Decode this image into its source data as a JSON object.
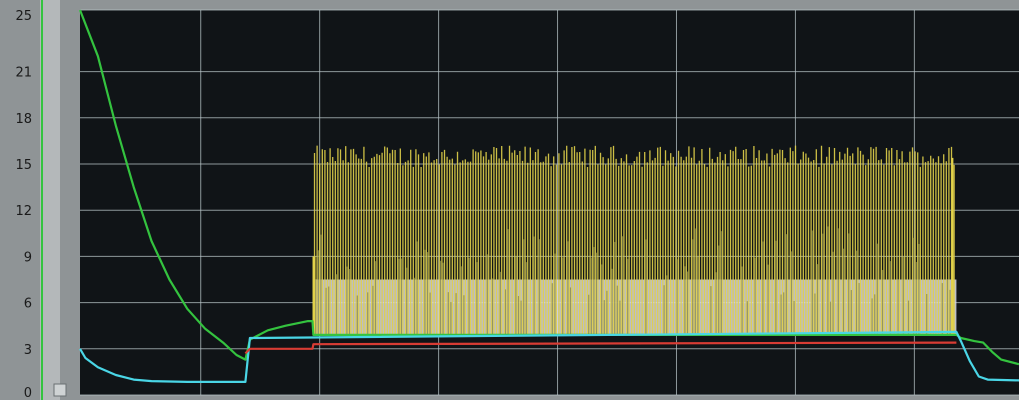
{
  "chart_data": {
    "type": "line",
    "title": "",
    "xlabel": "",
    "ylabel": "",
    "ylim": [
      0,
      25
    ],
    "yticks": [
      "0",
      "3",
      "6",
      "9",
      "12",
      "15",
      "18",
      "21",
      "25"
    ],
    "grid": true,
    "background": "#101417",
    "grid_color": "#b8c4c8",
    "series": [
      {
        "color": "#34c33f",
        "points": [
          [
            0,
            25
          ],
          [
            2,
            22
          ],
          [
            4,
            17.5
          ],
          [
            6,
            13.5
          ],
          [
            8,
            10
          ],
          [
            10,
            7.5
          ],
          [
            12,
            5.6
          ],
          [
            14,
            4.3
          ],
          [
            16,
            3.4
          ],
          [
            17.5,
            2.6
          ],
          [
            18.5,
            2.3
          ],
          [
            19,
            3.6
          ],
          [
            21,
            4.2
          ],
          [
            23,
            4.5
          ],
          [
            25.5,
            4.8
          ],
          [
            26,
            4.8
          ],
          [
            26.1,
            3.9
          ],
          [
            98,
            3.9
          ],
          [
            98.5,
            3.7
          ],
          [
            100,
            3.5
          ],
          [
            101,
            3.4
          ],
          [
            102,
            2.8
          ],
          [
            103,
            2.3
          ],
          [
            105,
            2.0
          ]
        ]
      },
      {
        "color": "#4ad6e6",
        "points": [
          [
            0,
            3.0
          ],
          [
            0.6,
            2.4
          ],
          [
            2,
            1.8
          ],
          [
            4,
            1.3
          ],
          [
            6,
            1.0
          ],
          [
            8,
            0.9
          ],
          [
            12,
            0.85
          ],
          [
            18.5,
            0.85
          ],
          [
            19,
            3.7
          ],
          [
            98,
            4.1
          ],
          [
            98.5,
            3.5
          ],
          [
            99.5,
            2.2
          ],
          [
            100.5,
            1.2
          ],
          [
            101.5,
            1.0
          ],
          [
            105,
            0.95
          ]
        ]
      },
      {
        "color": "#d83c34",
        "points": [
          [
            18.5,
            2.7
          ],
          [
            19,
            3.0
          ],
          [
            26,
            3.0
          ],
          [
            26.1,
            3.3
          ],
          [
            98,
            3.4
          ]
        ]
      },
      {
        "color": "#e2d24a",
        "x_range": [
          26,
          98
        ],
        "base": 3.9,
        "plateau": 7.5,
        "peak_range": [
          14.8,
          16.2
        ]
      }
    ]
  }
}
